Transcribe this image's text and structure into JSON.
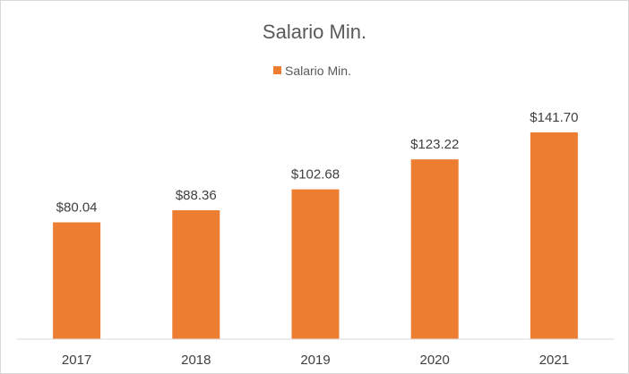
{
  "chart_data": {
    "type": "bar",
    "title": "Salario Min.",
    "categories": [
      "2017",
      "2018",
      "2019",
      "2020",
      "2021"
    ],
    "series": [
      {
        "name": "Salario Min.",
        "values": [
          80.04,
          88.36,
          102.68,
          123.22,
          141.7
        ],
        "labels": [
          "$80.04",
          "$88.36",
          "$102.68",
          "$123.22",
          "$141.70"
        ],
        "color": "#ED7D31"
      }
    ],
    "ylim": [
      0,
      160
    ],
    "grid": false,
    "legend_position": "top"
  }
}
